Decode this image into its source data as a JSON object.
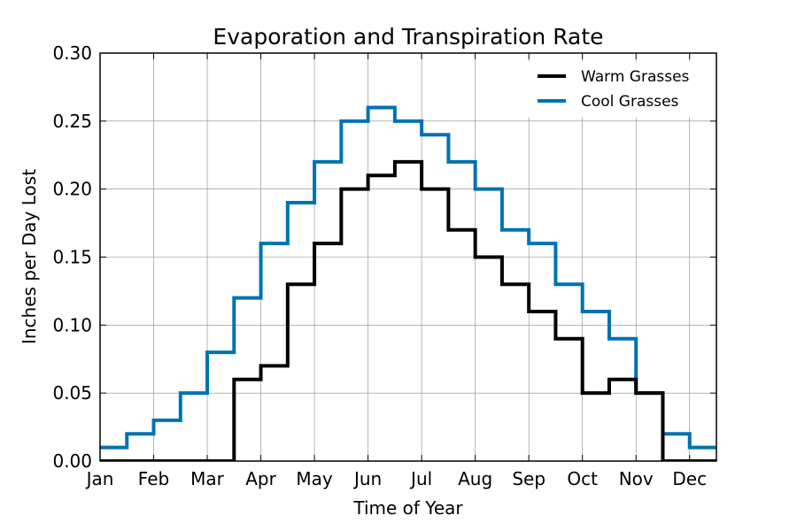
{
  "chart_data": {
    "type": "line",
    "step": "post",
    "title": "Evaporation and Transpiration Rate",
    "xlabel": "Time of Year",
    "ylabel": "Inches per Day Lost",
    "xlim": [
      0,
      23
    ],
    "ylim": [
      0,
      0.3
    ],
    "x_ticks": [
      {
        "x": 0,
        "label": "Jan"
      },
      {
        "x": 2,
        "label": "Feb"
      },
      {
        "x": 4,
        "label": "Mar"
      },
      {
        "x": 6,
        "label": "Apr"
      },
      {
        "x": 8,
        "label": "May"
      },
      {
        "x": 10,
        "label": "Jun"
      },
      {
        "x": 12,
        "label": "Jul"
      },
      {
        "x": 14,
        "label": "Aug"
      },
      {
        "x": 16,
        "label": "Sep"
      },
      {
        "x": 18,
        "label": "Oct"
      },
      {
        "x": 20,
        "label": "Nov"
      },
      {
        "x": 22,
        "label": "Dec"
      }
    ],
    "y_ticks": [
      {
        "y": 0.0,
        "label": "0.00"
      },
      {
        "y": 0.05,
        "label": "0.05"
      },
      {
        "y": 0.1,
        "label": "0.10"
      },
      {
        "y": 0.15,
        "label": "0.15"
      },
      {
        "y": 0.2,
        "label": "0.20"
      },
      {
        "y": 0.25,
        "label": "0.25"
      },
      {
        "y": 0.3,
        "label": "0.30"
      }
    ],
    "grid": true,
    "legend_position": "top-right",
    "series": [
      {
        "name": "Warm Grasses",
        "color": "#000000",
        "values": [
          0,
          0,
          0,
          0,
          0,
          0.06,
          0.07,
          0.13,
          0.16,
          0.2,
          0.21,
          0.22,
          0.2,
          0.17,
          0.15,
          0.13,
          0.11,
          0.09,
          0.05,
          0.06,
          0.05,
          0,
          0
        ]
      },
      {
        "name": "Cool Grasses",
        "color": "#0072b2",
        "values": [
          0.01,
          0.02,
          0.03,
          0.05,
          0.08,
          0.12,
          0.16,
          0.19,
          0.22,
          0.25,
          0.26,
          0.25,
          0.24,
          0.22,
          0.2,
          0.17,
          0.16,
          0.13,
          0.11,
          0.09,
          0.05,
          0.02,
          0.01
        ]
      }
    ]
  }
}
